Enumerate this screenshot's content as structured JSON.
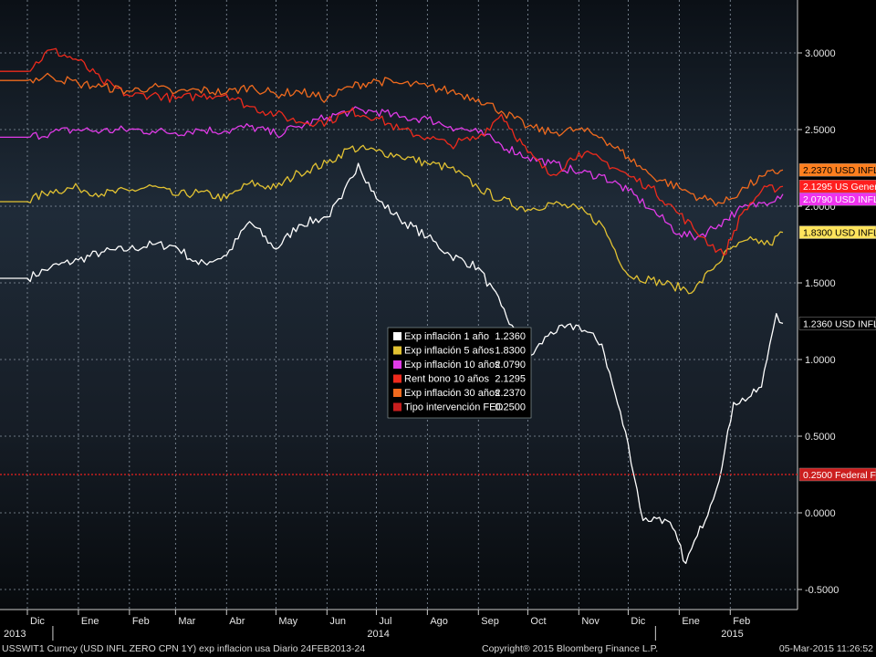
{
  "chart_data": {
    "type": "line",
    "title": "",
    "xlabel": "",
    "ylabel": "",
    "ylim": [
      -0.5,
      3.0
    ],
    "y_ticks": [
      "3.0000",
      "2.5000",
      "2.0000",
      "1.5000",
      "1.0000",
      "0.5000",
      "0.0000",
      "-0.5000"
    ],
    "y_tick_values": [
      3.0,
      2.5,
      2.0,
      1.5,
      1.0,
      0.5,
      0.0,
      -0.5
    ],
    "x_range": [
      "2013-12-01",
      "2015-03-05"
    ],
    "month_ticks": [
      {
        "label": "Dic",
        "date": "2013-12-01"
      },
      {
        "label": "Ene",
        "date": "2014-01-01"
      },
      {
        "label": "Feb",
        "date": "2014-02-01"
      },
      {
        "label": "Mar",
        "date": "2014-03-01"
      },
      {
        "label": "Abr",
        "date": "2014-04-01"
      },
      {
        "label": "May",
        "date": "2014-05-01"
      },
      {
        "label": "Jun",
        "date": "2014-06-01"
      },
      {
        "label": "Jul",
        "date": "2014-07-01"
      },
      {
        "label": "Ago",
        "date": "2014-08-01"
      },
      {
        "label": "Sep",
        "date": "2014-09-01"
      },
      {
        "label": "Oct",
        "date": "2014-10-01"
      },
      {
        "label": "Nov",
        "date": "2014-11-01"
      },
      {
        "label": "Dic",
        "date": "2014-12-01"
      },
      {
        "label": "Ene",
        "date": "2015-01-01"
      },
      {
        "label": "Feb",
        "date": "2015-02-01"
      }
    ],
    "year_labels": [
      {
        "label": "2013",
        "date": "2013-12-01"
      },
      {
        "label": "2014",
        "date": "2014-07-01"
      },
      {
        "label": "2015",
        "date": "2015-02-01"
      }
    ],
    "grid": true,
    "legend_position": "center",
    "series": [
      {
        "name": "Exp inflación 1 año",
        "legend_value": "1.2360",
        "color": "#ffffff",
        "tag": "1.2360 USD INFL",
        "tag_bg": "#000000",
        "tag_fg": "#ffffff",
        "tag_value": 1.236,
        "points": [
          [
            "2013-12-01",
            1.53
          ],
          [
            "2013-12-15",
            1.6
          ],
          [
            "2014-01-01",
            1.65
          ],
          [
            "2014-01-15",
            1.7
          ],
          [
            "2014-02-01",
            1.72
          ],
          [
            "2014-02-15",
            1.75
          ],
          [
            "2014-03-01",
            1.74
          ],
          [
            "2014-03-15",
            1.62
          ],
          [
            "2014-04-01",
            1.68
          ],
          [
            "2014-04-15",
            1.9
          ],
          [
            "2014-05-01",
            1.72
          ],
          [
            "2014-05-15",
            1.88
          ],
          [
            "2014-06-01",
            1.93
          ],
          [
            "2014-06-10",
            2.05
          ],
          [
            "2014-06-20",
            2.28
          ],
          [
            "2014-07-01",
            2.05
          ],
          [
            "2014-07-15",
            1.92
          ],
          [
            "2014-08-01",
            1.8
          ],
          [
            "2014-08-15",
            1.68
          ],
          [
            "2014-09-01",
            1.6
          ],
          [
            "2014-09-15",
            1.35
          ],
          [
            "2014-10-01",
            1.0
          ],
          [
            "2014-10-15",
            1.18
          ],
          [
            "2014-11-01",
            1.22
          ],
          [
            "2014-11-15",
            1.1
          ],
          [
            "2014-12-01",
            0.45
          ],
          [
            "2014-12-10",
            -0.05
          ],
          [
            "2014-12-20",
            -0.03
          ],
          [
            "2014-12-28",
            -0.1
          ],
          [
            "2015-01-05",
            -0.33
          ],
          [
            "2015-01-12",
            -0.15
          ],
          [
            "2015-01-20",
            0.05
          ],
          [
            "2015-01-27",
            0.3
          ],
          [
            "2015-02-03",
            0.72
          ],
          [
            "2015-02-12",
            0.75
          ],
          [
            "2015-02-20",
            0.82
          ],
          [
            "2015-02-25",
            1.1
          ],
          [
            "2015-03-01",
            1.3
          ],
          [
            "2015-03-05",
            1.236
          ]
        ]
      },
      {
        "name": "Exp inflación 5 años",
        "legend_value": "1.8300",
        "color": "#e2c232",
        "tag": "1.8300 USD INFL",
        "tag_bg": "#ffe45c",
        "tag_fg": "#000000",
        "tag_value": 1.83,
        "points": [
          [
            "2013-12-01",
            2.03
          ],
          [
            "2013-12-15",
            2.1
          ],
          [
            "2014-01-01",
            2.12
          ],
          [
            "2014-01-15",
            2.08
          ],
          [
            "2014-02-01",
            2.1
          ],
          [
            "2014-02-15",
            2.13
          ],
          [
            "2014-03-01",
            2.07
          ],
          [
            "2014-03-15",
            2.09
          ],
          [
            "2014-04-01",
            2.05
          ],
          [
            "2014-04-15",
            2.15
          ],
          [
            "2014-05-01",
            2.12
          ],
          [
            "2014-05-15",
            2.22
          ],
          [
            "2014-06-01",
            2.28
          ],
          [
            "2014-06-15",
            2.38
          ],
          [
            "2014-07-01",
            2.36
          ],
          [
            "2014-07-15",
            2.33
          ],
          [
            "2014-08-01",
            2.28
          ],
          [
            "2014-08-15",
            2.25
          ],
          [
            "2014-09-01",
            2.12
          ],
          [
            "2014-09-15",
            2.04
          ],
          [
            "2014-10-01",
            1.98
          ],
          [
            "2014-10-15",
            2.02
          ],
          [
            "2014-11-01",
            1.98
          ],
          [
            "2014-11-15",
            1.88
          ],
          [
            "2014-12-01",
            1.55
          ],
          [
            "2014-12-15",
            1.52
          ],
          [
            "2014-12-28",
            1.48
          ],
          [
            "2015-01-10",
            1.45
          ],
          [
            "2015-01-20",
            1.58
          ],
          [
            "2015-02-01",
            1.72
          ],
          [
            "2015-02-15",
            1.78
          ],
          [
            "2015-02-25",
            1.75
          ],
          [
            "2015-03-05",
            1.83
          ]
        ]
      },
      {
        "name": "Exp inflación 10 años",
        "legend_value": "2.0790",
        "color": "#e13be8",
        "tag": "2.0790 USD INFL",
        "tag_bg": "#ee33ee",
        "tag_fg": "#ffffff",
        "tag_value": 2.079,
        "points": [
          [
            "2013-12-01",
            2.45
          ],
          [
            "2013-12-15",
            2.48
          ],
          [
            "2014-01-01",
            2.5
          ],
          [
            "2014-01-15",
            2.49
          ],
          [
            "2014-02-01",
            2.5
          ],
          [
            "2014-02-15",
            2.49
          ],
          [
            "2014-03-01",
            2.48
          ],
          [
            "2014-03-15",
            2.5
          ],
          [
            "2014-04-01",
            2.49
          ],
          [
            "2014-04-15",
            2.52
          ],
          [
            "2014-05-01",
            2.47
          ],
          [
            "2014-05-15",
            2.52
          ],
          [
            "2014-06-01",
            2.58
          ],
          [
            "2014-06-15",
            2.62
          ],
          [
            "2014-07-01",
            2.62
          ],
          [
            "2014-07-15",
            2.58
          ],
          [
            "2014-08-01",
            2.57
          ],
          [
            "2014-08-15",
            2.52
          ],
          [
            "2014-09-01",
            2.48
          ],
          [
            "2014-09-15",
            2.4
          ],
          [
            "2014-10-01",
            2.32
          ],
          [
            "2014-10-15",
            2.28
          ],
          [
            "2014-11-01",
            2.22
          ],
          [
            "2014-11-15",
            2.2
          ],
          [
            "2014-12-01",
            2.1
          ],
          [
            "2014-12-15",
            1.98
          ],
          [
            "2015-01-01",
            1.82
          ],
          [
            "2015-01-12",
            1.8
          ],
          [
            "2015-01-25",
            1.88
          ],
          [
            "2015-02-05",
            1.97
          ],
          [
            "2015-02-20",
            2.02
          ],
          [
            "2015-03-05",
            2.079
          ]
        ]
      },
      {
        "name": "Rent bono 10 años",
        "legend_value": "2.1295",
        "color": "#ee2a1c",
        "tag": "2.1295 US Generi",
        "tag_bg": "#ff1e1e",
        "tag_fg": "#ffffff",
        "tag_value": 2.1295,
        "points": [
          [
            "2013-12-01",
            2.88
          ],
          [
            "2013-12-15",
            3.02
          ],
          [
            "2014-01-01",
            2.95
          ],
          [
            "2014-01-15",
            2.82
          ],
          [
            "2014-02-01",
            2.72
          ],
          [
            "2014-02-15",
            2.73
          ],
          [
            "2014-03-01",
            2.7
          ],
          [
            "2014-03-15",
            2.72
          ],
          [
            "2014-04-01",
            2.73
          ],
          [
            "2014-04-15",
            2.65
          ],
          [
            "2014-05-01",
            2.6
          ],
          [
            "2014-05-15",
            2.55
          ],
          [
            "2014-06-01",
            2.55
          ],
          [
            "2014-06-15",
            2.62
          ],
          [
            "2014-07-01",
            2.58
          ],
          [
            "2014-07-15",
            2.5
          ],
          [
            "2014-08-01",
            2.45
          ],
          [
            "2014-08-15",
            2.4
          ],
          [
            "2014-09-01",
            2.45
          ],
          [
            "2014-09-15",
            2.6
          ],
          [
            "2014-10-01",
            2.35
          ],
          [
            "2014-10-15",
            2.2
          ],
          [
            "2014-11-01",
            2.35
          ],
          [
            "2014-11-15",
            2.3
          ],
          [
            "2014-12-01",
            2.2
          ],
          [
            "2014-12-15",
            2.12
          ],
          [
            "2015-01-01",
            1.95
          ],
          [
            "2015-01-15",
            1.8
          ],
          [
            "2015-01-28",
            1.68
          ],
          [
            "2015-02-08",
            1.95
          ],
          [
            "2015-02-20",
            2.1
          ],
          [
            "2015-03-05",
            2.1295
          ]
        ]
      },
      {
        "name": "Exp inflación 30 años",
        "legend_value": "2.2370",
        "color": "#f06a1e",
        "tag": "2.2370 USD INFL",
        "tag_bg": "#ff7f1e",
        "tag_fg": "#000000",
        "tag_value": 2.237,
        "points": [
          [
            "2013-12-01",
            2.82
          ],
          [
            "2013-12-15",
            2.85
          ],
          [
            "2014-01-01",
            2.8
          ],
          [
            "2014-01-15",
            2.78
          ],
          [
            "2014-02-01",
            2.75
          ],
          [
            "2014-02-15",
            2.78
          ],
          [
            "2014-03-01",
            2.74
          ],
          [
            "2014-03-15",
            2.76
          ],
          [
            "2014-04-01",
            2.74
          ],
          [
            "2014-04-15",
            2.78
          ],
          [
            "2014-05-01",
            2.73
          ],
          [
            "2014-05-15",
            2.75
          ],
          [
            "2014-06-01",
            2.7
          ],
          [
            "2014-06-15",
            2.78
          ],
          [
            "2014-07-01",
            2.82
          ],
          [
            "2014-07-15",
            2.8
          ],
          [
            "2014-08-01",
            2.78
          ],
          [
            "2014-08-15",
            2.75
          ],
          [
            "2014-09-01",
            2.7
          ],
          [
            "2014-09-15",
            2.62
          ],
          [
            "2014-10-01",
            2.52
          ],
          [
            "2014-10-15",
            2.48
          ],
          [
            "2014-11-01",
            2.5
          ],
          [
            "2014-11-15",
            2.45
          ],
          [
            "2014-12-01",
            2.32
          ],
          [
            "2014-12-15",
            2.2
          ],
          [
            "2015-01-01",
            2.12
          ],
          [
            "2015-01-15",
            2.05
          ],
          [
            "2015-01-28",
            2.02
          ],
          [
            "2015-02-10",
            2.12
          ],
          [
            "2015-02-22",
            2.2
          ],
          [
            "2015-03-05",
            2.237
          ]
        ]
      },
      {
        "name": "Tipo intervención FED",
        "legend_value": "0.2500",
        "color": "#c81e1e",
        "tag": "0.2500 Federal F",
        "tag_bg": "#cc1e1e",
        "tag_fg": "#ffffff",
        "tag_value": 0.25,
        "dashed": true,
        "points": [
          [
            "2013-12-01",
            0.25
          ],
          [
            "2015-03-05",
            0.25
          ]
        ]
      }
    ]
  },
  "footer": {
    "left": "USSWIT1 Curncy (USD INFL ZERO CPN    1Y) exp inflacion usa  Diario 24FEB2013-24",
    "center": "Copyright® 2015 Bloomberg Finance L.P.",
    "right": "05-Mar-2015 11:26:52"
  }
}
